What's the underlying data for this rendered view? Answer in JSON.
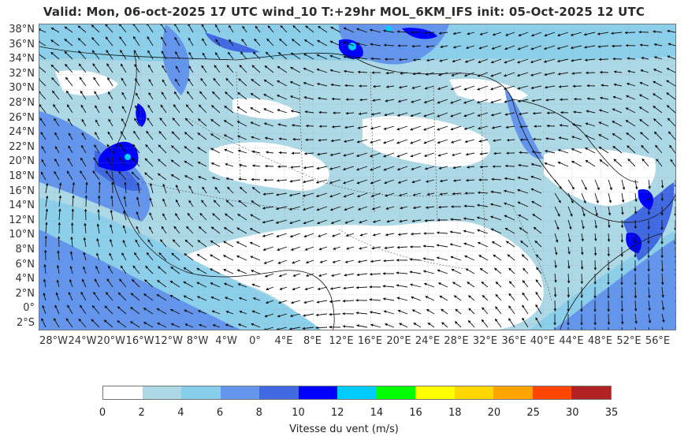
{
  "title": "Valid: Mon, 06-oct-2025   17 UTC   wind_10   T:+29hr   MOL_6KM_IFS   init: 05-Oct-2025    12 UTC",
  "map": {
    "lat_labels": [
      "38°N",
      "36°N",
      "34°N",
      "32°N",
      "30°N",
      "28°N",
      "26°N",
      "24°N",
      "22°N",
      "20°N",
      "18°N",
      "16°N",
      "14°N",
      "12°N",
      "10°N",
      "8°N",
      "6°N",
      "4°N",
      "2°N",
      "0°",
      "2°S"
    ],
    "lon_labels": [
      "28°W",
      "24°W",
      "20°W",
      "16°W",
      "12°W",
      "8°W",
      "4°W",
      "0°",
      "4°E",
      "8°E",
      "12°E",
      "16°E",
      "20°E",
      "24°E",
      "28°E",
      "32°E",
      "36°E",
      "40°E",
      "44°E",
      "48°E",
      "52°E",
      "56°E"
    ]
  },
  "colorbar": {
    "ticks": [
      "0",
      "2",
      "4",
      "6",
      "8",
      "10",
      "12",
      "14",
      "16",
      "18",
      "20",
      "25",
      "30",
      "35"
    ],
    "colors": [
      "#ffffff",
      "#add8e6",
      "#87ceeb",
      "#6495ed",
      "#4169e1",
      "#0000ff",
      "#00ccff",
      "#00ff00",
      "#ffff00",
      "#ffd700",
      "#ffa500",
      "#ff4500",
      "#b22222"
    ],
    "label": "Vitesse du vent (m/s)"
  }
}
